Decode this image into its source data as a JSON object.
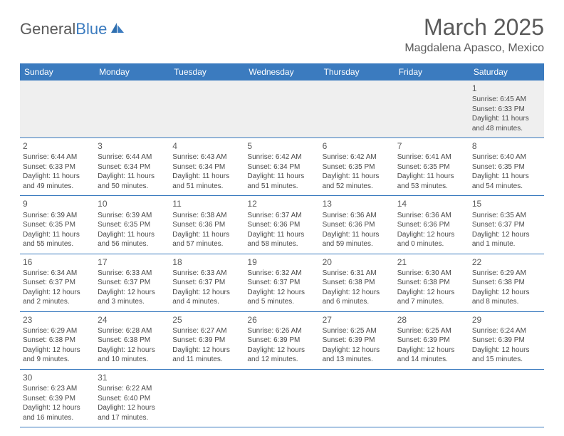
{
  "brand": {
    "part1": "General",
    "part2": "Blue"
  },
  "title": "March 2025",
  "location": "Magdalena Apasco, Mexico",
  "colors": {
    "header_bg": "#3b7bbf",
    "header_text": "#ffffff",
    "text": "#4a4a4a",
    "border": "#3b7bbf",
    "alt_row_bg": "#efefef"
  },
  "day_headers": [
    "Sunday",
    "Monday",
    "Tuesday",
    "Wednesday",
    "Thursday",
    "Friday",
    "Saturday"
  ],
  "weeks": [
    [
      null,
      null,
      null,
      null,
      null,
      null,
      {
        "n": "1",
        "sr": "6:45 AM",
        "ss": "6:33 PM",
        "dl": "11 hours and 48 minutes."
      }
    ],
    [
      {
        "n": "2",
        "sr": "6:44 AM",
        "ss": "6:33 PM",
        "dl": "11 hours and 49 minutes."
      },
      {
        "n": "3",
        "sr": "6:44 AM",
        "ss": "6:34 PM",
        "dl": "11 hours and 50 minutes."
      },
      {
        "n": "4",
        "sr": "6:43 AM",
        "ss": "6:34 PM",
        "dl": "11 hours and 51 minutes."
      },
      {
        "n": "5",
        "sr": "6:42 AM",
        "ss": "6:34 PM",
        "dl": "11 hours and 51 minutes."
      },
      {
        "n": "6",
        "sr": "6:42 AM",
        "ss": "6:35 PM",
        "dl": "11 hours and 52 minutes."
      },
      {
        "n": "7",
        "sr": "6:41 AM",
        "ss": "6:35 PM",
        "dl": "11 hours and 53 minutes."
      },
      {
        "n": "8",
        "sr": "6:40 AM",
        "ss": "6:35 PM",
        "dl": "11 hours and 54 minutes."
      }
    ],
    [
      {
        "n": "9",
        "sr": "6:39 AM",
        "ss": "6:35 PM",
        "dl": "11 hours and 55 minutes."
      },
      {
        "n": "10",
        "sr": "6:39 AM",
        "ss": "6:35 PM",
        "dl": "11 hours and 56 minutes."
      },
      {
        "n": "11",
        "sr": "6:38 AM",
        "ss": "6:36 PM",
        "dl": "11 hours and 57 minutes."
      },
      {
        "n": "12",
        "sr": "6:37 AM",
        "ss": "6:36 PM",
        "dl": "11 hours and 58 minutes."
      },
      {
        "n": "13",
        "sr": "6:36 AM",
        "ss": "6:36 PM",
        "dl": "11 hours and 59 minutes."
      },
      {
        "n": "14",
        "sr": "6:36 AM",
        "ss": "6:36 PM",
        "dl": "12 hours and 0 minutes."
      },
      {
        "n": "15",
        "sr": "6:35 AM",
        "ss": "6:37 PM",
        "dl": "12 hours and 1 minute."
      }
    ],
    [
      {
        "n": "16",
        "sr": "6:34 AM",
        "ss": "6:37 PM",
        "dl": "12 hours and 2 minutes."
      },
      {
        "n": "17",
        "sr": "6:33 AM",
        "ss": "6:37 PM",
        "dl": "12 hours and 3 minutes."
      },
      {
        "n": "18",
        "sr": "6:33 AM",
        "ss": "6:37 PM",
        "dl": "12 hours and 4 minutes."
      },
      {
        "n": "19",
        "sr": "6:32 AM",
        "ss": "6:37 PM",
        "dl": "12 hours and 5 minutes."
      },
      {
        "n": "20",
        "sr": "6:31 AM",
        "ss": "6:38 PM",
        "dl": "12 hours and 6 minutes."
      },
      {
        "n": "21",
        "sr": "6:30 AM",
        "ss": "6:38 PM",
        "dl": "12 hours and 7 minutes."
      },
      {
        "n": "22",
        "sr": "6:29 AM",
        "ss": "6:38 PM",
        "dl": "12 hours and 8 minutes."
      }
    ],
    [
      {
        "n": "23",
        "sr": "6:29 AM",
        "ss": "6:38 PM",
        "dl": "12 hours and 9 minutes."
      },
      {
        "n": "24",
        "sr": "6:28 AM",
        "ss": "6:38 PM",
        "dl": "12 hours and 10 minutes."
      },
      {
        "n": "25",
        "sr": "6:27 AM",
        "ss": "6:39 PM",
        "dl": "12 hours and 11 minutes."
      },
      {
        "n": "26",
        "sr": "6:26 AM",
        "ss": "6:39 PM",
        "dl": "12 hours and 12 minutes."
      },
      {
        "n": "27",
        "sr": "6:25 AM",
        "ss": "6:39 PM",
        "dl": "12 hours and 13 minutes."
      },
      {
        "n": "28",
        "sr": "6:25 AM",
        "ss": "6:39 PM",
        "dl": "12 hours and 14 minutes."
      },
      {
        "n": "29",
        "sr": "6:24 AM",
        "ss": "6:39 PM",
        "dl": "12 hours and 15 minutes."
      }
    ],
    [
      {
        "n": "30",
        "sr": "6:23 AM",
        "ss": "6:39 PM",
        "dl": "12 hours and 16 minutes."
      },
      {
        "n": "31",
        "sr": "6:22 AM",
        "ss": "6:40 PM",
        "dl": "12 hours and 17 minutes."
      },
      null,
      null,
      null,
      null,
      null
    ]
  ],
  "labels": {
    "sunrise": "Sunrise: ",
    "sunset": "Sunset: ",
    "daylight": "Daylight: "
  }
}
